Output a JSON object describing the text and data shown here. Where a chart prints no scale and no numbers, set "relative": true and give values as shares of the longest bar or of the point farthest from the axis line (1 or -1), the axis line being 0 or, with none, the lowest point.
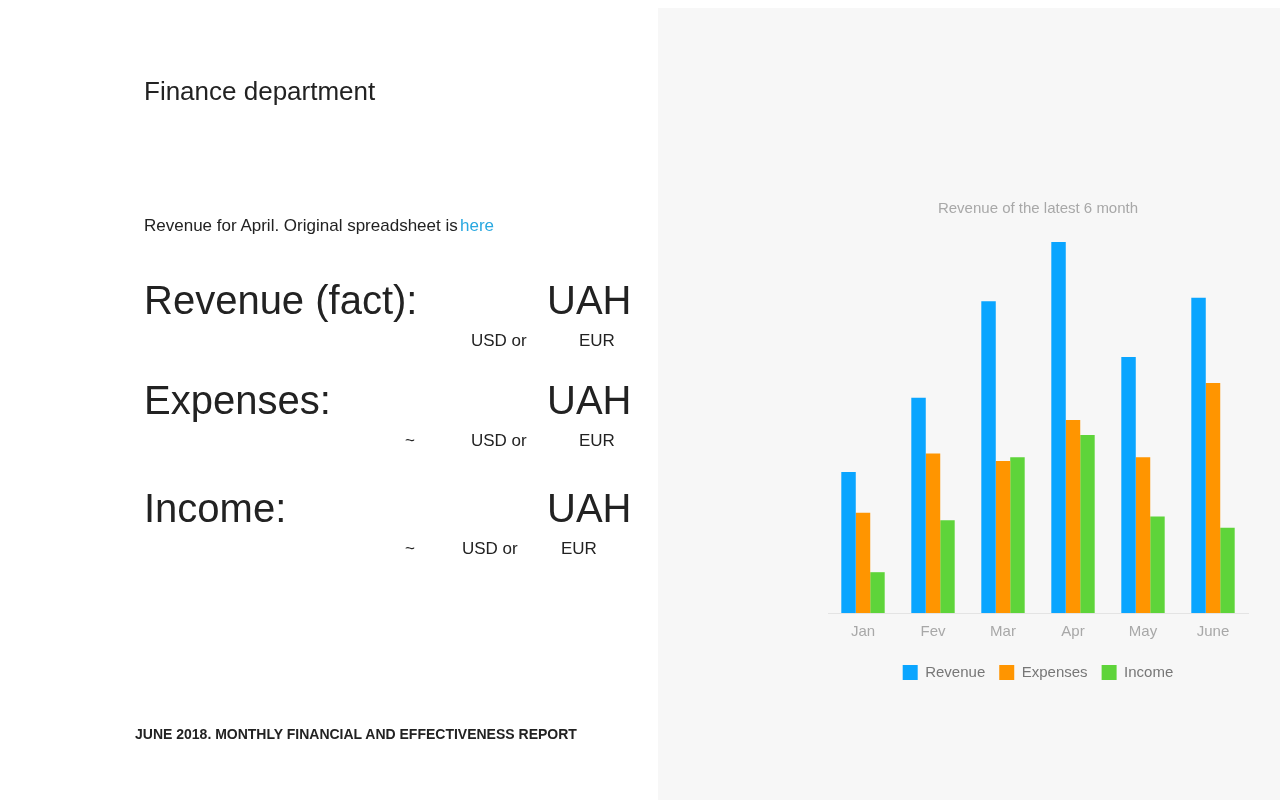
{
  "chart_data": {
    "type": "bar",
    "title": "Revenue of the latest 6 month",
    "relative": true,
    "legend": "bottom",
    "categories": [
      "Jan",
      "Fev",
      "Mar",
      "Apr",
      "May",
      "June"
    ],
    "series": [
      {
        "name": "Revenue",
        "color": "#0aa5ff",
        "values": [
          0.38,
          0.58,
          0.84,
          1,
          0.69,
          0.85
        ]
      },
      {
        "name": "Expenses",
        "color": "#ff9500",
        "values": [
          0.27,
          0.43,
          0.41,
          0.52,
          0.42,
          0.62
        ]
      },
      {
        "name": "Income",
        "color": "#5ed43a",
        "values": [
          0.11,
          0.25,
          0.42,
          0.48,
          0.26,
          0.23
        ]
      }
    ],
    "annotations": [
      "Finance department",
      "Revenue for April. Original spreadsheet is",
      "here",
      "Revenue (fact):",
      "UAH",
      "USD or",
      "EUR",
      "Expenses:",
      "UAH",
      "~",
      "USD or",
      "EUR",
      "Income:",
      "UAH",
      "~",
      "USD or",
      "EUR",
      "JUNE 2018. MONTHLY FINANCIAL AND EFFECTIVENESS REPORT"
    ]
  }
}
